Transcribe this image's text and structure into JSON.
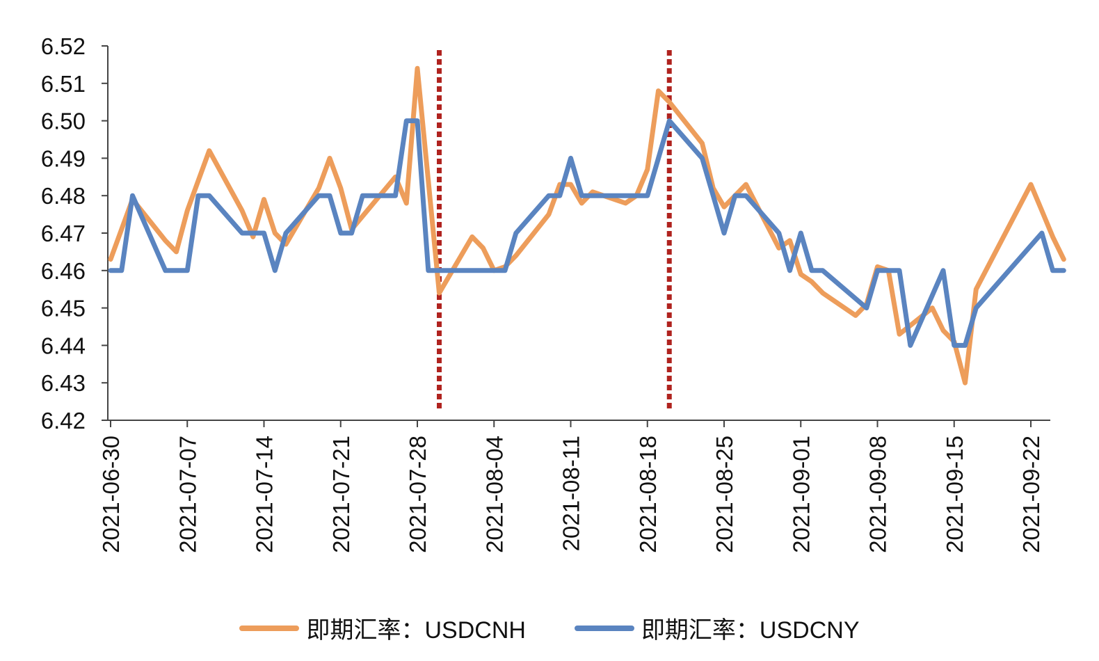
{
  "chart_data": {
    "type": "line",
    "title": "",
    "xlabel": "",
    "ylabel": "",
    "ylim": [
      6.42,
      6.52
    ],
    "yticks": [
      "6.52",
      "6.51",
      "6.50",
      "6.49",
      "6.48",
      "6.47",
      "6.46",
      "6.45",
      "6.44",
      "6.43",
      "6.42"
    ],
    "xticks": [
      "2021-06-30",
      "2021-07-07",
      "2021-07-14",
      "2021-07-21",
      "2021-07-28",
      "2021-08-04",
      "2021-08-11",
      "2021-08-18",
      "2021-08-25",
      "2021-09-01",
      "2021-09-08",
      "2021-09-15",
      "2021-09-22"
    ],
    "grid": false,
    "legend": "bottom",
    "colors": {
      "usdcnh": "#ED9D5B",
      "usdcny": "#5A84C0",
      "marker": "#B0231F"
    },
    "markers": [
      "2021-07-30",
      "2021-08-20"
    ],
    "series": [
      {
        "name": "即期汇率：USDCNH",
        "color": "#ED9D5B",
        "points": [
          [
            "2021-06-30",
            6.463
          ],
          [
            "2021-07-02",
            6.479
          ],
          [
            "2021-07-05",
            6.468
          ],
          [
            "2021-07-06",
            6.465
          ],
          [
            "2021-07-07",
            6.476
          ],
          [
            "2021-07-09",
            6.492
          ],
          [
            "2021-07-12",
            6.476
          ],
          [
            "2021-07-13",
            6.469
          ],
          [
            "2021-07-14",
            6.479
          ],
          [
            "2021-07-15",
            6.47
          ],
          [
            "2021-07-16",
            6.467
          ],
          [
            "2021-07-19",
            6.482
          ],
          [
            "2021-07-20",
            6.49
          ],
          [
            "2021-07-21",
            6.482
          ],
          [
            "2021-07-22",
            6.471
          ],
          [
            "2021-07-26",
            6.485
          ],
          [
            "2021-07-27",
            6.478
          ],
          [
            "2021-07-28",
            6.514
          ],
          [
            "2021-07-30",
            6.454
          ],
          [
            "2021-08-02",
            6.469
          ],
          [
            "2021-08-03",
            6.466
          ],
          [
            "2021-08-04",
            6.46
          ],
          [
            "2021-08-05",
            6.461
          ],
          [
            "2021-08-06",
            6.464
          ],
          [
            "2021-08-09",
            6.475
          ],
          [
            "2021-08-10",
            6.483
          ],
          [
            "2021-08-11",
            6.483
          ],
          [
            "2021-08-12",
            6.478
          ],
          [
            "2021-08-13",
            6.481
          ],
          [
            "2021-08-16",
            6.478
          ],
          [
            "2021-08-17",
            6.48
          ],
          [
            "2021-08-18",
            6.487
          ],
          [
            "2021-08-19",
            6.508
          ],
          [
            "2021-08-20",
            6.505
          ],
          [
            "2021-08-23",
            6.494
          ],
          [
            "2021-08-24",
            6.482
          ],
          [
            "2021-08-25",
            6.477
          ],
          [
            "2021-08-26",
            6.48
          ],
          [
            "2021-08-27",
            6.483
          ],
          [
            "2021-08-30",
            6.466
          ],
          [
            "2021-08-31",
            6.468
          ],
          [
            "2021-09-01",
            6.459
          ],
          [
            "2021-09-02",
            6.457
          ],
          [
            "2021-09-03",
            6.454
          ],
          [
            "2021-09-06",
            6.448
          ],
          [
            "2021-09-07",
            6.451
          ],
          [
            "2021-09-08",
            6.461
          ],
          [
            "2021-09-09",
            6.46
          ],
          [
            "2021-09-10",
            6.443
          ],
          [
            "2021-09-13",
            6.45
          ],
          [
            "2021-09-14",
            6.444
          ],
          [
            "2021-09-15",
            6.441
          ],
          [
            "2021-09-16",
            6.43
          ],
          [
            "2021-09-17",
            6.455
          ],
          [
            "2021-09-22",
            6.483
          ],
          [
            "2021-09-23",
            6.476
          ],
          [
            "2021-09-24",
            6.469
          ],
          [
            "2021-09-25",
            6.463
          ]
        ]
      },
      {
        "name": "即期汇率：USDCNY",
        "color": "#5A84C0",
        "points": [
          [
            "2021-06-30",
            6.46
          ],
          [
            "2021-07-01",
            6.46
          ],
          [
            "2021-07-02",
            6.48
          ],
          [
            "2021-07-05",
            6.46
          ],
          [
            "2021-07-06",
            6.46
          ],
          [
            "2021-07-07",
            6.46
          ],
          [
            "2021-07-08",
            6.48
          ],
          [
            "2021-07-09",
            6.48
          ],
          [
            "2021-07-12",
            6.47
          ],
          [
            "2021-07-13",
            6.47
          ],
          [
            "2021-07-14",
            6.47
          ],
          [
            "2021-07-15",
            6.46
          ],
          [
            "2021-07-16",
            6.47
          ],
          [
            "2021-07-19",
            6.48
          ],
          [
            "2021-07-20",
            6.48
          ],
          [
            "2021-07-21",
            6.47
          ],
          [
            "2021-07-22",
            6.47
          ],
          [
            "2021-07-23",
            6.48
          ],
          [
            "2021-07-26",
            6.48
          ],
          [
            "2021-07-27",
            6.5
          ],
          [
            "2021-07-28",
            6.5
          ],
          [
            "2021-07-29",
            6.46
          ],
          [
            "2021-07-30",
            6.46
          ],
          [
            "2021-08-02",
            6.46
          ],
          [
            "2021-08-03",
            6.46
          ],
          [
            "2021-08-04",
            6.46
          ],
          [
            "2021-08-05",
            6.46
          ],
          [
            "2021-08-06",
            6.47
          ],
          [
            "2021-08-09",
            6.48
          ],
          [
            "2021-08-10",
            6.48
          ],
          [
            "2021-08-11",
            6.49
          ],
          [
            "2021-08-12",
            6.48
          ],
          [
            "2021-08-13",
            6.48
          ],
          [
            "2021-08-16",
            6.48
          ],
          [
            "2021-08-17",
            6.48
          ],
          [
            "2021-08-18",
            6.48
          ],
          [
            "2021-08-20",
            6.5
          ],
          [
            "2021-08-23",
            6.49
          ],
          [
            "2021-08-24",
            6.48
          ],
          [
            "2021-08-25",
            6.47
          ],
          [
            "2021-08-26",
            6.48
          ],
          [
            "2021-08-27",
            6.48
          ],
          [
            "2021-08-30",
            6.47
          ],
          [
            "2021-08-31",
            6.46
          ],
          [
            "2021-09-01",
            6.47
          ],
          [
            "2021-09-02",
            6.46
          ],
          [
            "2021-09-03",
            6.46
          ],
          [
            "2021-09-07",
            6.45
          ],
          [
            "2021-09-08",
            6.46
          ],
          [
            "2021-09-09",
            6.46
          ],
          [
            "2021-09-10",
            6.46
          ],
          [
            "2021-09-11",
            6.44
          ],
          [
            "2021-09-14",
            6.46
          ],
          [
            "2021-09-15",
            6.44
          ],
          [
            "2021-09-16",
            6.44
          ],
          [
            "2021-09-17",
            6.45
          ],
          [
            "2021-09-23",
            6.47
          ],
          [
            "2021-09-24",
            6.46
          ],
          [
            "2021-09-25",
            6.46
          ]
        ]
      }
    ]
  }
}
